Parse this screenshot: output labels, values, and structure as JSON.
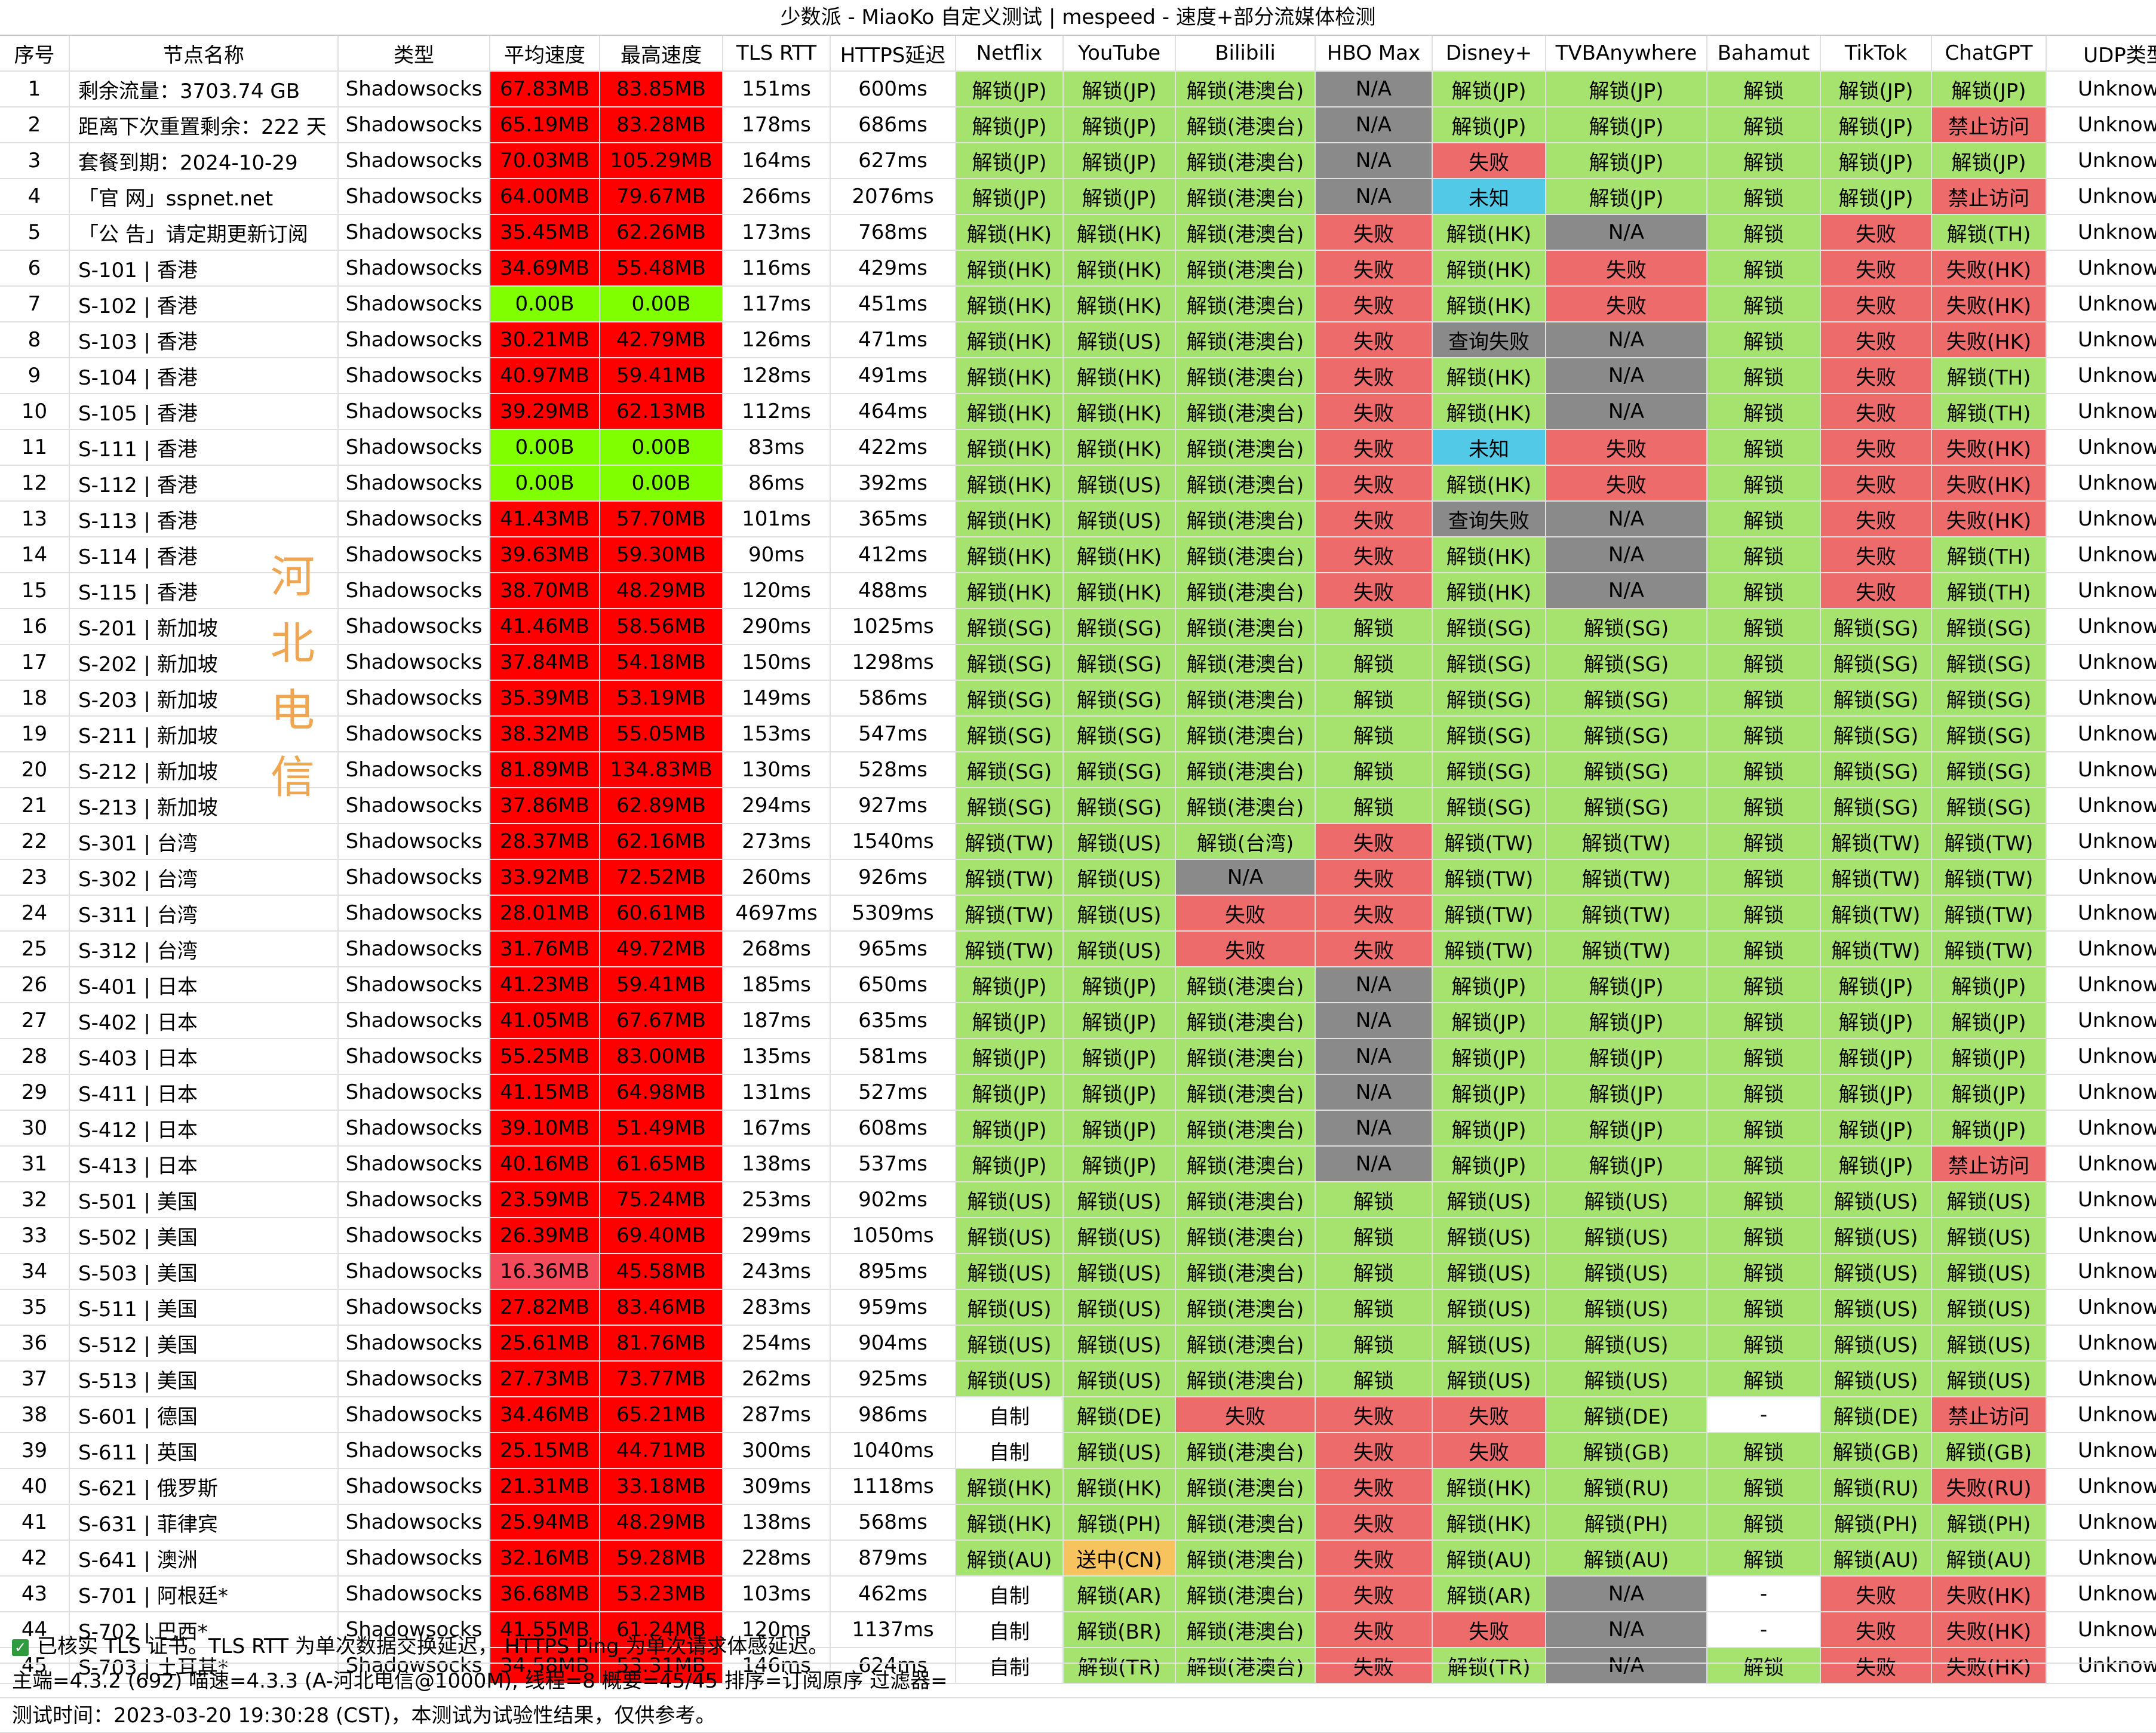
{
  "title": "少数派 - MiaoKo 自定义测试 | mespeed - 速度+部分流媒体检测",
  "headers": [
    "序号",
    "节点名称",
    "类型",
    "平均速度",
    "最高速度",
    "TLS RTT",
    "HTTPS延迟",
    "Netflix",
    "YouTube",
    "Bilibili",
    "HBO Max",
    "Disney+",
    "TVBAnywhere",
    "Bahamut",
    "TikTok",
    "ChatGPT",
    "UDP类型"
  ],
  "watermark": "河北电信",
  "colors": {
    "green": "#a6e36e",
    "red": "#ee6b6b",
    "gray": "#8a8a8a",
    "cyan": "#53c9e8",
    "orange": "#f6c35e",
    "speed_red": "#ff0000",
    "speed_pink": "#f34b5b",
    "speed_green": "#7fff00",
    "white": "#ffffff"
  },
  "rows": [
    [
      "1",
      "剩余流量：3703.74 GB",
      "Shadowsocks",
      "67.83MB",
      "83.85MB",
      "151ms",
      "600ms",
      "解锁(JP)",
      "解锁(JP)",
      "解锁(港澳台)",
      "N/A",
      "解锁(JP)",
      "解锁(JP)",
      "解锁",
      "解锁(JP)",
      "解锁(JP)",
      "Unknown"
    ],
    [
      "2",
      "距离下次重置剩余：222 天",
      "Shadowsocks",
      "65.19MB",
      "83.28MB",
      "178ms",
      "686ms",
      "解锁(JP)",
      "解锁(JP)",
      "解锁(港澳台)",
      "N/A",
      "解锁(JP)",
      "解锁(JP)",
      "解锁",
      "解锁(JP)",
      "禁止访问",
      "Unknown"
    ],
    [
      "3",
      "套餐到期：2024-10-29",
      "Shadowsocks",
      "70.03MB",
      "105.29MB",
      "164ms",
      "627ms",
      "解锁(JP)",
      "解锁(JP)",
      "解锁(港澳台)",
      "N/A",
      "失败",
      "解锁(JP)",
      "解锁",
      "解锁(JP)",
      "解锁(JP)",
      "Unknown"
    ],
    [
      "4",
      "「官 网」sspnet.net",
      "Shadowsocks",
      "64.00MB",
      "79.67MB",
      "266ms",
      "2076ms",
      "解锁(JP)",
      "解锁(JP)",
      "解锁(港澳台)",
      "N/A",
      "未知",
      "解锁(JP)",
      "解锁",
      "解锁(JP)",
      "禁止访问",
      "Unknown"
    ],
    [
      "5",
      "「公 告」请定期更新订阅",
      "Shadowsocks",
      "35.45MB",
      "62.26MB",
      "173ms",
      "768ms",
      "解锁(HK)",
      "解锁(HK)",
      "解锁(港澳台)",
      "失败",
      "解锁(HK)",
      "N/A",
      "解锁",
      "失败",
      "解锁(TH)",
      "Unknown"
    ],
    [
      "6",
      "S-101 | 香港",
      "Shadowsocks",
      "34.69MB",
      "55.48MB",
      "116ms",
      "429ms",
      "解锁(HK)",
      "解锁(HK)",
      "解锁(港澳台)",
      "失败",
      "解锁(HK)",
      "失败",
      "解锁",
      "失败",
      "失败(HK)",
      "Unknown"
    ],
    [
      "7",
      "S-102 | 香港",
      "Shadowsocks",
      "0.00B",
      "0.00B",
      "117ms",
      "451ms",
      "解锁(HK)",
      "解锁(HK)",
      "解锁(港澳台)",
      "失败",
      "解锁(HK)",
      "失败",
      "解锁",
      "失败",
      "失败(HK)",
      "Unknown"
    ],
    [
      "8",
      "S-103 | 香港",
      "Shadowsocks",
      "30.21MB",
      "42.79MB",
      "126ms",
      "471ms",
      "解锁(HK)",
      "解锁(US)",
      "解锁(港澳台)",
      "失败",
      "查询失败",
      "N/A",
      "解锁",
      "失败",
      "失败(HK)",
      "Unknown"
    ],
    [
      "9",
      "S-104 | 香港",
      "Shadowsocks",
      "40.97MB",
      "59.41MB",
      "128ms",
      "491ms",
      "解锁(HK)",
      "解锁(HK)",
      "解锁(港澳台)",
      "失败",
      "解锁(HK)",
      "N/A",
      "解锁",
      "失败",
      "解锁(TH)",
      "Unknown"
    ],
    [
      "10",
      "S-105 | 香港",
      "Shadowsocks",
      "39.29MB",
      "62.13MB",
      "112ms",
      "464ms",
      "解锁(HK)",
      "解锁(HK)",
      "解锁(港澳台)",
      "失败",
      "解锁(HK)",
      "N/A",
      "解锁",
      "失败",
      "解锁(TH)",
      "Unknown"
    ],
    [
      "11",
      "S-111 | 香港",
      "Shadowsocks",
      "0.00B",
      "0.00B",
      "83ms",
      "422ms",
      "解锁(HK)",
      "解锁(HK)",
      "解锁(港澳台)",
      "失败",
      "未知",
      "失败",
      "解锁",
      "失败",
      "失败(HK)",
      "Unknown"
    ],
    [
      "12",
      "S-112 | 香港",
      "Shadowsocks",
      "0.00B",
      "0.00B",
      "86ms",
      "392ms",
      "解锁(HK)",
      "解锁(US)",
      "解锁(港澳台)",
      "失败",
      "解锁(HK)",
      "失败",
      "解锁",
      "失败",
      "失败(HK)",
      "Unknown"
    ],
    [
      "13",
      "S-113 | 香港",
      "Shadowsocks",
      "41.43MB",
      "57.70MB",
      "101ms",
      "365ms",
      "解锁(HK)",
      "解锁(US)",
      "解锁(港澳台)",
      "失败",
      "查询失败",
      "N/A",
      "解锁",
      "失败",
      "失败(HK)",
      "Unknown"
    ],
    [
      "14",
      "S-114 | 香港",
      "Shadowsocks",
      "39.63MB",
      "59.30MB",
      "90ms",
      "412ms",
      "解锁(HK)",
      "解锁(HK)",
      "解锁(港澳台)",
      "失败",
      "解锁(HK)",
      "N/A",
      "解锁",
      "失败",
      "解锁(TH)",
      "Unknown"
    ],
    [
      "15",
      "S-115 | 香港",
      "Shadowsocks",
      "38.70MB",
      "48.29MB",
      "120ms",
      "488ms",
      "解锁(HK)",
      "解锁(HK)",
      "解锁(港澳台)",
      "失败",
      "解锁(HK)",
      "N/A",
      "解锁",
      "失败",
      "解锁(TH)",
      "Unknown"
    ],
    [
      "16",
      "S-201 | 新加坡",
      "Shadowsocks",
      "41.46MB",
      "58.56MB",
      "290ms",
      "1025ms",
      "解锁(SG)",
      "解锁(SG)",
      "解锁(港澳台)",
      "解锁",
      "解锁(SG)",
      "解锁(SG)",
      "解锁",
      "解锁(SG)",
      "解锁(SG)",
      "Unknown"
    ],
    [
      "17",
      "S-202 | 新加坡",
      "Shadowsocks",
      "37.84MB",
      "54.18MB",
      "150ms",
      "1298ms",
      "解锁(SG)",
      "解锁(SG)",
      "解锁(港澳台)",
      "解锁",
      "解锁(SG)",
      "解锁(SG)",
      "解锁",
      "解锁(SG)",
      "解锁(SG)",
      "Unknown"
    ],
    [
      "18",
      "S-203 | 新加坡",
      "Shadowsocks",
      "35.39MB",
      "53.19MB",
      "149ms",
      "586ms",
      "解锁(SG)",
      "解锁(SG)",
      "解锁(港澳台)",
      "解锁",
      "解锁(SG)",
      "解锁(SG)",
      "解锁",
      "解锁(SG)",
      "解锁(SG)",
      "Unknown"
    ],
    [
      "19",
      "S-211 | 新加坡",
      "Shadowsocks",
      "38.32MB",
      "55.05MB",
      "153ms",
      "547ms",
      "解锁(SG)",
      "解锁(SG)",
      "解锁(港澳台)",
      "解锁",
      "解锁(SG)",
      "解锁(SG)",
      "解锁",
      "解锁(SG)",
      "解锁(SG)",
      "Unknown"
    ],
    [
      "20",
      "S-212 | 新加坡",
      "Shadowsocks",
      "81.89MB",
      "134.83MB",
      "130ms",
      "528ms",
      "解锁(SG)",
      "解锁(SG)",
      "解锁(港澳台)",
      "解锁",
      "解锁(SG)",
      "解锁(SG)",
      "解锁",
      "解锁(SG)",
      "解锁(SG)",
      "Unknown"
    ],
    [
      "21",
      "S-213 | 新加坡",
      "Shadowsocks",
      "37.86MB",
      "62.89MB",
      "294ms",
      "927ms",
      "解锁(SG)",
      "解锁(SG)",
      "解锁(港澳台)",
      "解锁",
      "解锁(SG)",
      "解锁(SG)",
      "解锁",
      "解锁(SG)",
      "解锁(SG)",
      "Unknown"
    ],
    [
      "22",
      "S-301 | 台湾",
      "Shadowsocks",
      "28.37MB",
      "62.16MB",
      "273ms",
      "1540ms",
      "解锁(TW)",
      "解锁(US)",
      "解锁(台湾)",
      "失败",
      "解锁(TW)",
      "解锁(TW)",
      "解锁",
      "解锁(TW)",
      "解锁(TW)",
      "Unknown"
    ],
    [
      "23",
      "S-302 | 台湾",
      "Shadowsocks",
      "33.92MB",
      "72.52MB",
      "260ms",
      "926ms",
      "解锁(TW)",
      "解锁(US)",
      "N/A",
      "失败",
      "解锁(TW)",
      "解锁(TW)",
      "解锁",
      "解锁(TW)",
      "解锁(TW)",
      "Unknown"
    ],
    [
      "24",
      "S-311 | 台湾",
      "Shadowsocks",
      "28.01MB",
      "60.61MB",
      "4697ms",
      "5309ms",
      "解锁(TW)",
      "解锁(US)",
      "失败",
      "失败",
      "解锁(TW)",
      "解锁(TW)",
      "解锁",
      "解锁(TW)",
      "解锁(TW)",
      "Unknown"
    ],
    [
      "25",
      "S-312 | 台湾",
      "Shadowsocks",
      "31.76MB",
      "49.72MB",
      "268ms",
      "965ms",
      "解锁(TW)",
      "解锁(US)",
      "失败",
      "失败",
      "解锁(TW)",
      "解锁(TW)",
      "解锁",
      "解锁(TW)",
      "解锁(TW)",
      "Unknown"
    ],
    [
      "26",
      "S-401 | 日本",
      "Shadowsocks",
      "41.23MB",
      "59.41MB",
      "185ms",
      "650ms",
      "解锁(JP)",
      "解锁(JP)",
      "解锁(港澳台)",
      "N/A",
      "解锁(JP)",
      "解锁(JP)",
      "解锁",
      "解锁(JP)",
      "解锁(JP)",
      "Unknown"
    ],
    [
      "27",
      "S-402 | 日本",
      "Shadowsocks",
      "41.05MB",
      "67.67MB",
      "187ms",
      "635ms",
      "解锁(JP)",
      "解锁(JP)",
      "解锁(港澳台)",
      "N/A",
      "解锁(JP)",
      "解锁(JP)",
      "解锁",
      "解锁(JP)",
      "解锁(JP)",
      "Unknown"
    ],
    [
      "28",
      "S-403 | 日本",
      "Shadowsocks",
      "55.25MB",
      "83.00MB",
      "135ms",
      "581ms",
      "解锁(JP)",
      "解锁(JP)",
      "解锁(港澳台)",
      "N/A",
      "解锁(JP)",
      "解锁(JP)",
      "解锁",
      "解锁(JP)",
      "解锁(JP)",
      "Unknown"
    ],
    [
      "29",
      "S-411 | 日本",
      "Shadowsocks",
      "41.15MB",
      "64.98MB",
      "131ms",
      "527ms",
      "解锁(JP)",
      "解锁(JP)",
      "解锁(港澳台)",
      "N/A",
      "解锁(JP)",
      "解锁(JP)",
      "解锁",
      "解锁(JP)",
      "解锁(JP)",
      "Unknown"
    ],
    [
      "30",
      "S-412 | 日本",
      "Shadowsocks",
      "39.10MB",
      "51.49MB",
      "167ms",
      "608ms",
      "解锁(JP)",
      "解锁(JP)",
      "解锁(港澳台)",
      "N/A",
      "解锁(JP)",
      "解锁(JP)",
      "解锁",
      "解锁(JP)",
      "解锁(JP)",
      "Unknown"
    ],
    [
      "31",
      "S-413 | 日本",
      "Shadowsocks",
      "40.16MB",
      "61.65MB",
      "138ms",
      "537ms",
      "解锁(JP)",
      "解锁(JP)",
      "解锁(港澳台)",
      "N/A",
      "解锁(JP)",
      "解锁(JP)",
      "解锁",
      "解锁(JP)",
      "禁止访问",
      "Unknown"
    ],
    [
      "32",
      "S-501 | 美国",
      "Shadowsocks",
      "23.59MB",
      "75.24MB",
      "253ms",
      "902ms",
      "解锁(US)",
      "解锁(US)",
      "解锁(港澳台)",
      "解锁",
      "解锁(US)",
      "解锁(US)",
      "解锁",
      "解锁(US)",
      "解锁(US)",
      "Unknown"
    ],
    [
      "33",
      "S-502 | 美国",
      "Shadowsocks",
      "26.39MB",
      "69.40MB",
      "299ms",
      "1050ms",
      "解锁(US)",
      "解锁(US)",
      "解锁(港澳台)",
      "解锁",
      "解锁(US)",
      "解锁(US)",
      "解锁",
      "解锁(US)",
      "解锁(US)",
      "Unknown"
    ],
    [
      "34",
      "S-503 | 美国",
      "Shadowsocks",
      "16.36MB",
      "45.58MB",
      "243ms",
      "895ms",
      "解锁(US)",
      "解锁(US)",
      "解锁(港澳台)",
      "解锁",
      "解锁(US)",
      "解锁(US)",
      "解锁",
      "解锁(US)",
      "解锁(US)",
      "Unknown"
    ],
    [
      "35",
      "S-511 | 美国",
      "Shadowsocks",
      "27.82MB",
      "83.46MB",
      "283ms",
      "959ms",
      "解锁(US)",
      "解锁(US)",
      "解锁(港澳台)",
      "解锁",
      "解锁(US)",
      "解锁(US)",
      "解锁",
      "解锁(US)",
      "解锁(US)",
      "Unknown"
    ],
    [
      "36",
      "S-512 | 美国",
      "Shadowsocks",
      "25.61MB",
      "81.76MB",
      "254ms",
      "904ms",
      "解锁(US)",
      "解锁(US)",
      "解锁(港澳台)",
      "解锁",
      "解锁(US)",
      "解锁(US)",
      "解锁",
      "解锁(US)",
      "解锁(US)",
      "Unknown"
    ],
    [
      "37",
      "S-513 | 美国",
      "Shadowsocks",
      "27.73MB",
      "73.77MB",
      "262ms",
      "925ms",
      "解锁(US)",
      "解锁(US)",
      "解锁(港澳台)",
      "解锁",
      "解锁(US)",
      "解锁(US)",
      "解锁",
      "解锁(US)",
      "解锁(US)",
      "Unknown"
    ],
    [
      "38",
      "S-601 | 德国",
      "Shadowsocks",
      "34.46MB",
      "65.21MB",
      "287ms",
      "986ms",
      "自制",
      "解锁(DE)",
      "失败",
      "失败",
      "失败",
      "解锁(DE)",
      "-",
      "解锁(DE)",
      "禁止访问",
      "Unknown"
    ],
    [
      "39",
      "S-611 | 英国",
      "Shadowsocks",
      "25.15MB",
      "44.71MB",
      "300ms",
      "1040ms",
      "自制",
      "解锁(US)",
      "解锁(港澳台)",
      "失败",
      "失败",
      "解锁(GB)",
      "解锁",
      "解锁(GB)",
      "解锁(GB)",
      "Unknown"
    ],
    [
      "40",
      "S-621 | 俄罗斯",
      "Shadowsocks",
      "21.31MB",
      "33.18MB",
      "309ms",
      "1118ms",
      "解锁(HK)",
      "解锁(HK)",
      "解锁(港澳台)",
      "失败",
      "解锁(HK)",
      "解锁(RU)",
      "解锁",
      "解锁(RU)",
      "失败(RU)",
      "Unknown"
    ],
    [
      "41",
      "S-631 | 菲律宾",
      "Shadowsocks",
      "25.94MB",
      "48.29MB",
      "138ms",
      "568ms",
      "解锁(HK)",
      "解锁(PH)",
      "解锁(港澳台)",
      "失败",
      "解锁(HK)",
      "解锁(PH)",
      "解锁",
      "解锁(PH)",
      "解锁(PH)",
      "Unknown"
    ],
    [
      "42",
      "S-641 | 澳洲",
      "Shadowsocks",
      "32.16MB",
      "59.28MB",
      "228ms",
      "879ms",
      "解锁(AU)",
      "送中(CN)",
      "解锁(港澳台)",
      "失败",
      "解锁(AU)",
      "解锁(AU)",
      "解锁",
      "解锁(AU)",
      "解锁(AU)",
      "Unknown"
    ],
    [
      "43",
      "S-701 | 阿根廷*",
      "Shadowsocks",
      "36.68MB",
      "53.23MB",
      "103ms",
      "462ms",
      "自制",
      "解锁(AR)",
      "解锁(港澳台)",
      "失败",
      "解锁(AR)",
      "N/A",
      "-",
      "失败",
      "失败(HK)",
      "Unknown"
    ],
    [
      "44",
      "S-702 | 巴西*",
      "Shadowsocks",
      "41.55MB",
      "61.24MB",
      "120ms",
      "1137ms",
      "自制",
      "解锁(BR)",
      "解锁(港澳台)",
      "失败",
      "失败",
      "N/A",
      "-",
      "失败",
      "失败(HK)",
      "Unknown"
    ],
    [
      "45",
      "S-703 | 土耳其*",
      "Shadowsocks",
      "34.58MB",
      "53.31MB",
      "146ms",
      "624ms",
      "自制",
      "解锁(TR)",
      "解锁(港澳台)",
      "失败",
      "解锁(TR)",
      "N/A",
      "解锁",
      "失败",
      "失败(HK)",
      "Unknown"
    ]
  ],
  "footer": {
    "line1": "已核实 TLS 证书。TLS RTT 为单次数据交换延迟， HTTPS Ping 为单次请求体感延迟。",
    "line2": "主端=4.3.2 (692) 喵速=4.3.3 (A-河北电信@1000M), 线程=8 概要=45/45 排序=订阅原序 过滤器=",
    "line3": "测试时间：2023-03-20 19:30:28 (CST)，本测试为试验性结果，仅供参考。"
  }
}
